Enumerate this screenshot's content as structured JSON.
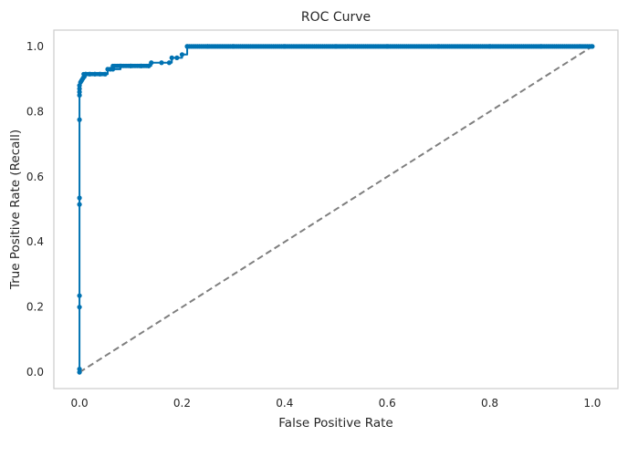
{
  "chart_data": {
    "type": "line",
    "title": "ROC Curve",
    "xlabel": "False Positive Rate",
    "ylabel": "True Positive Rate (Recall)",
    "xlim": [
      -0.05,
      1.05
    ],
    "ylim": [
      -0.05,
      1.05
    ],
    "xticks": [
      "0.0",
      "0.2",
      "0.4",
      "0.6",
      "0.8",
      "1.0"
    ],
    "yticks": [
      "0.0",
      "0.2",
      "0.4",
      "0.6",
      "0.8",
      "1.0"
    ],
    "grid": false,
    "legend": "none",
    "series": [
      {
        "style": "line-with-markers",
        "color": "#0072b2",
        "x": [
          0.0,
          0.0,
          0.0,
          0.0,
          0.0,
          0.0,
          0.0,
          0.0,
          0.0,
          0.0,
          0.0,
          0.002,
          0.004,
          0.006,
          0.008,
          0.012,
          0.02,
          0.03,
          0.04,
          0.05,
          0.055,
          0.06,
          0.065,
          0.08,
          0.1,
          0.12,
          0.135,
          0.14,
          0.16,
          0.175,
          0.18,
          0.19,
          0.2,
          0.21,
          0.25,
          0.3,
          0.4,
          0.5,
          0.6,
          0.7,
          0.8,
          0.9,
          1.0
        ],
        "y": [
          0.0,
          0.01,
          0.2,
          0.235,
          0.515,
          0.535,
          0.775,
          0.85,
          0.86,
          0.87,
          0.88,
          0.89,
          0.895,
          0.9,
          0.905,
          0.915,
          0.915,
          0.915,
          0.915,
          0.915,
          0.93,
          0.93,
          0.93,
          0.94,
          0.94,
          0.94,
          0.94,
          0.95,
          0.95,
          0.95,
          0.965,
          0.965,
          0.975,
          1.0,
          1.0,
          1.0,
          1.0,
          1.0,
          1.0,
          1.0,
          1.0,
          1.0,
          1.0
        ]
      },
      {
        "style": "dashed",
        "color": "#7f7f7f",
        "x": [
          0.0,
          1.0
        ],
        "y": [
          0.0,
          1.0
        ]
      }
    ]
  },
  "colors": {
    "roc": "#0072b2",
    "diagonal": "#7f7f7f",
    "frame": "#cccccc",
    "text": "#262626"
  }
}
